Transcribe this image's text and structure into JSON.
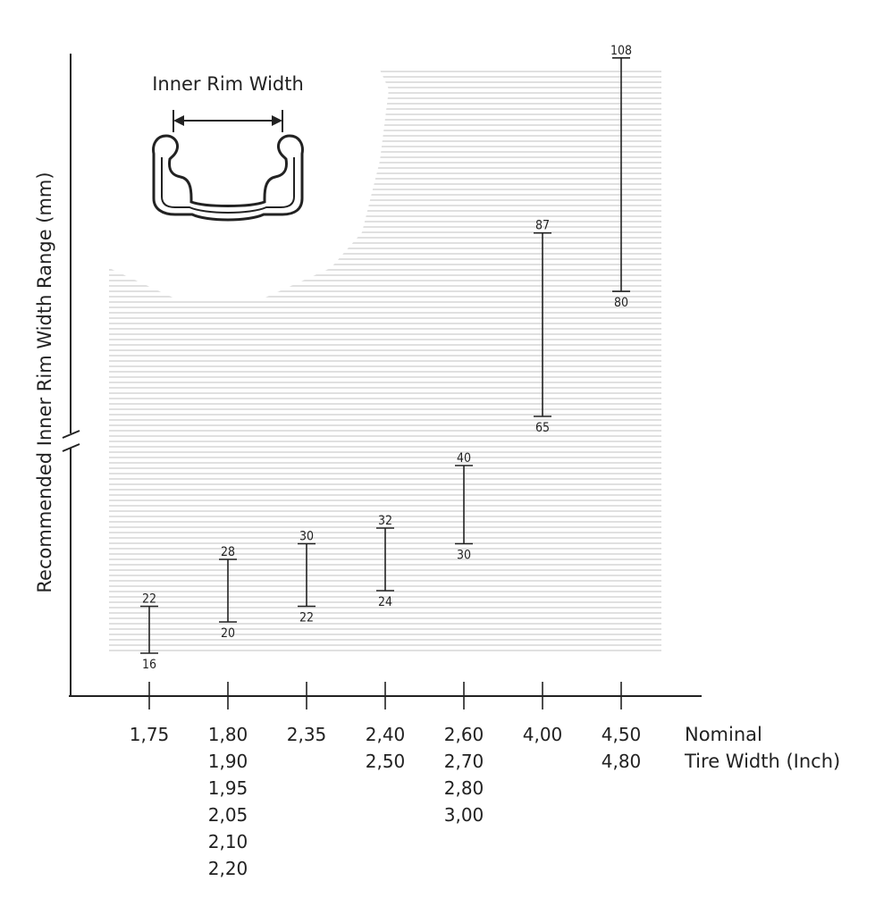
{
  "chart_data": {
    "type": "range-bar",
    "ylabel": "Recommended Inner Rim Width Range (mm)",
    "xlabel_lines": [
      "Nominal",
      "Tire Width (Inch)"
    ],
    "inset_title": "Inner Rim Width",
    "y_axis_break": true,
    "categories": [
      {
        "labels": [
          "1,75"
        ],
        "min": 16,
        "max": 22
      },
      {
        "labels": [
          "1,80",
          "1,90",
          "1,95",
          "2,05",
          "2,10",
          "2,20"
        ],
        "min": 20,
        "max": 28
      },
      {
        "labels": [
          "2,35"
        ],
        "min": 22,
        "max": 30
      },
      {
        "labels": [
          "2,40",
          "2,50"
        ],
        "min": 24,
        "max": 32
      },
      {
        "labels": [
          "2,60",
          "2,70",
          "2,80",
          "3,00"
        ],
        "min": 30,
        "max": 40
      },
      {
        "labels": [
          "4,00"
        ],
        "min": 65,
        "max": 87
      },
      {
        "labels": [
          "4,50",
          "4,80"
        ],
        "min": 80,
        "max": 108
      }
    ],
    "colors": {
      "ink": "#222222",
      "stripe": "#d6d6d6"
    }
  }
}
